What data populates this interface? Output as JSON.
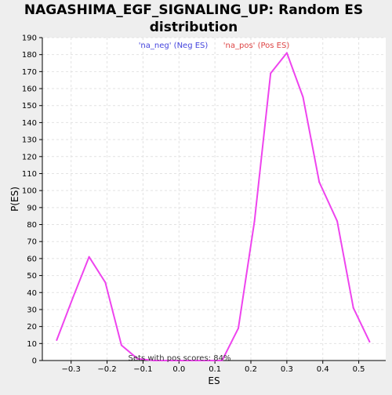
{
  "chart_data": {
    "type": "line",
    "title_lines": [
      "NAGASHIMA_EGF_SIGNALING_UP: Random ES",
      "distribution"
    ],
    "xlabel": "ES",
    "ylabel": "P(ES)",
    "xlim": [
      -0.38,
      0.575
    ],
    "ylim": [
      0,
      190
    ],
    "xticks": [
      -0.3,
      -0.2,
      -0.1,
      0.0,
      0.1,
      0.2,
      0.3,
      0.4,
      0.5
    ],
    "xtick_labels": [
      "−0.3",
      "−0.2",
      "−0.1",
      "0.0",
      "0.1",
      "0.2",
      "0.3",
      "0.4",
      "0.5"
    ],
    "yticks": [
      0,
      10,
      20,
      30,
      40,
      50,
      60,
      70,
      80,
      90,
      100,
      110,
      120,
      130,
      140,
      150,
      160,
      170,
      180,
      190
    ],
    "grid": true,
    "series": [
      {
        "name": "random-es-distribution",
        "color": "#ee44ee",
        "x": [
          -0.34,
          -0.295,
          -0.25,
          -0.205,
          -0.16,
          -0.115,
          -0.07,
          -0.025,
          0.02,
          0.065,
          0.11,
          0.12,
          0.165,
          0.21,
          0.255,
          0.3,
          0.345,
          0.39,
          0.44,
          0.485,
          0.53
        ],
        "y": [
          12,
          37,
          61,
          46,
          9,
          1,
          0,
          0,
          0,
          0,
          0,
          0,
          19,
          82,
          169,
          181,
          155,
          105,
          82,
          31,
          11
        ]
      }
    ],
    "legend": [
      {
        "label": "'na_neg' (Neg ES)",
        "color": "#4444dd"
      },
      {
        "label": "'na_pos' (Pos ES)",
        "color": "#dd4444"
      }
    ],
    "annotation": "Sets with pos scores: 84%"
  }
}
